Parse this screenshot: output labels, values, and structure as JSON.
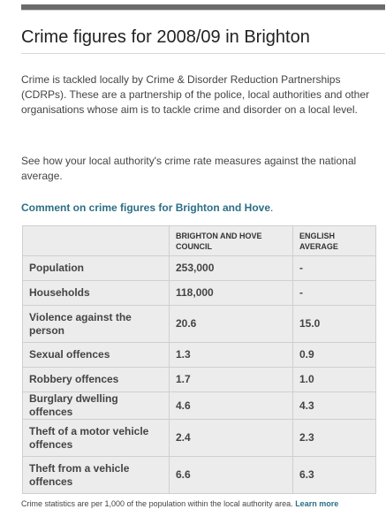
{
  "page": {
    "title": "Crime figures for 2008/09 in Brighton",
    "intro": "Crime is tackled locally by Crime & Disorder Reduction Partnerships (CDRPs). These are a partnership of the police, local authorities and other organisations whose aim is to tackle crime and disorder on a local level.",
    "compare_text": "See how your local authority's crime rate measures against the national average.",
    "comment_link": "Comment on crime figures for Brighton and Hove",
    "comment_suffix": ".",
    "footnote": "Crime statistics are per 1,000 of the population within the local authority area.",
    "learn_more": "Learn more"
  },
  "table": {
    "headers": [
      "",
      "BRIGHTON AND HOVE COUNCIL",
      "ENGLISH AVERAGE"
    ],
    "rows": [
      [
        "Population",
        "253,000",
        "-"
      ],
      [
        "Households",
        "118,000",
        "-"
      ],
      [
        "Violence against the person",
        "20.6",
        "15.0"
      ],
      [
        "Sexual offences",
        "1.3",
        "0.9"
      ],
      [
        "Robbery offences",
        "1.7",
        "1.0"
      ],
      [
        "Burglary dwelling offences",
        "4.6",
        "4.3"
      ],
      [
        "Theft of a motor vehicle offences",
        "2.4",
        "2.3"
      ],
      [
        "Theft from a vehicle offences",
        "6.6",
        "6.3"
      ]
    ]
  },
  "colors": {
    "link": "#2b6f85",
    "table_bg": "#ececec",
    "rule": "#6b6b6b"
  }
}
